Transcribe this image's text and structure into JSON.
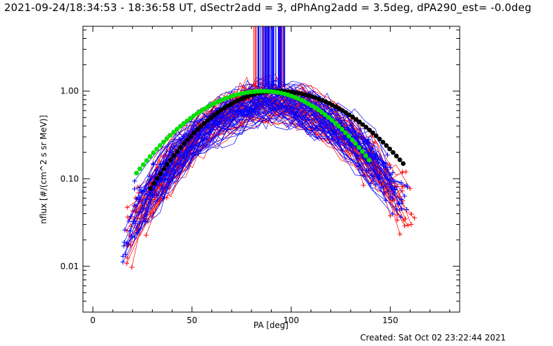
{
  "header": {
    "title": "2021-09-24/18:34:53 - 18:36:58 UT, dSectr2add = 3, dPhAng2add = 3.5deg, dPA290_est= -0.0deg"
  },
  "footer": {
    "created": "Created: Sat Oct 02 23:22:44 2021"
  },
  "chart_data": {
    "type": "line",
    "xlabel": "PA [deg]",
    "ylabel": "nflux [#/(cm^2 s sr MeV)]",
    "xlim": [
      -5,
      185
    ],
    "ylim": [
      0.003,
      5.5
    ],
    "yscale": "log",
    "xticks": [
      0,
      50,
      100,
      150
    ],
    "xtick_labels": [
      "0",
      "50",
      "100",
      "150"
    ],
    "yticks": [
      0.01,
      0.1,
      1.0
    ],
    "ytick_labels": [
      "0.01",
      "0.10",
      "1.00"
    ],
    "grid": false,
    "colors": {
      "red": "#ff0000",
      "blue": "#0000ff",
      "black": "#000000",
      "green": "#00e000"
    },
    "series": [
      {
        "color": "black",
        "marker": "circle",
        "curve": {
          "peak_x": 93,
          "peak_y": 1.0,
          "left_halfwidth": 40,
          "right_halfwidth": 46,
          "x_start": 29,
          "x_end": 158
        }
      },
      {
        "color": "green",
        "marker": "circle",
        "curve": {
          "peak_x": 86,
          "peak_y": 1.0,
          "left_halfwidth": 43.6,
          "right_halfwidth": 39.6,
          "x_start": 22,
          "x_end": 141
        }
      },
      {
        "color": "red",
        "marker": "plus",
        "count": 60,
        "curve": {
          "peak_x": 88,
          "peak_y": 0.78,
          "left_halfwidth": 37,
          "right_halfwidth": 41,
          "x_start": 17,
          "x_end": 163
        }
      },
      {
        "color": "blue",
        "marker": "plus",
        "count": 60,
        "curve": {
          "peak_x": 90,
          "peak_y": 0.7,
          "left_halfwidth": 40,
          "right_halfwidth": 42,
          "x_start": 15,
          "x_end": 162
        }
      }
    ],
    "spikes": [
      {
        "color": "red",
        "x": [
          81,
          96
        ]
      },
      {
        "color": "blue",
        "x": [
          83,
          97
        ]
      }
    ]
  }
}
